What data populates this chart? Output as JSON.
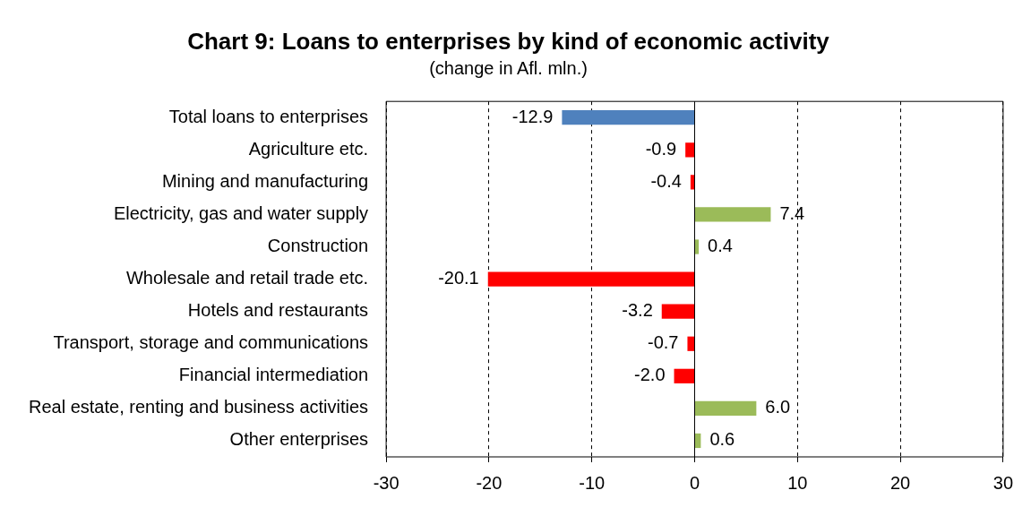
{
  "chart_data": {
    "type": "bar",
    "orientation": "horizontal",
    "title": "Chart 9: Loans to enterprises by kind of economic activity",
    "subtitle": "(change in Afl. mln.)",
    "categories": [
      "Total loans to enterprises",
      "Agriculture etc.",
      "Mining and manufacturing",
      "Electricity, gas and water supply",
      "Construction",
      "Wholesale and retail trade etc.",
      "Hotels and restaurants",
      "Transport, storage and communications",
      "Financial intermediation",
      "Real estate, renting and business activities",
      "Other enterprises"
    ],
    "values": [
      -12.9,
      -0.9,
      -0.4,
      7.4,
      0.4,
      -20.1,
      -3.2,
      -0.7,
      -2.0,
      6.0,
      0.6
    ],
    "value_labels": [
      "-12.9",
      "-0.9",
      "-0.4",
      "7.4",
      "0.4",
      "-20.1",
      "-3.2",
      "-0.7",
      "-2.0",
      "6.0",
      "0.6"
    ],
    "colors": [
      "#4f81bd",
      "#ff0000",
      "#ff0000",
      "#9bbb59",
      "#9bbb59",
      "#ff0000",
      "#ff0000",
      "#ff0000",
      "#ff0000",
      "#9bbb59",
      "#9bbb59"
    ],
    "xlim": [
      -30,
      30
    ],
    "xticks": [
      -30,
      -20,
      -10,
      0,
      10,
      20,
      30
    ],
    "grid": "x",
    "legend": false
  }
}
